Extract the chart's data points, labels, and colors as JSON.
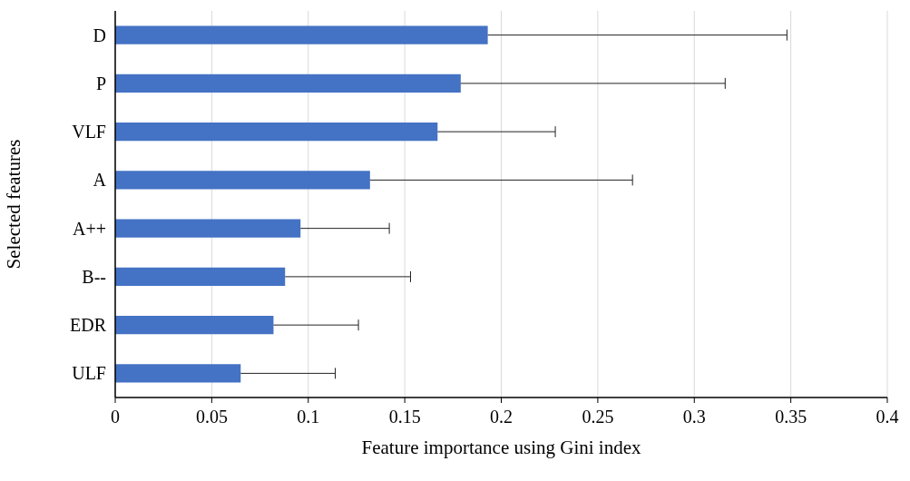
{
  "chart_data": {
    "type": "bar",
    "orientation": "horizontal",
    "xlabel": "Feature importance using Gini index",
    "ylabel": "Selected features",
    "categories": [
      "D",
      "P",
      "VLF",
      "A",
      "A++",
      "B--",
      "EDR",
      "ULF"
    ],
    "values": [
      0.193,
      0.179,
      0.167,
      0.132,
      0.096,
      0.088,
      0.082,
      0.065
    ],
    "errors": [
      [
        0.193,
        0.348
      ],
      [
        0.179,
        0.316
      ],
      [
        0.167,
        0.228
      ],
      [
        0.132,
        0.268
      ],
      [
        0.096,
        0.142
      ],
      [
        0.088,
        0.153
      ],
      [
        0.082,
        0.126
      ],
      [
        0.065,
        0.114
      ]
    ],
    "color": "#4472c4",
    "xlim": [
      0,
      0.4
    ],
    "xticks": [
      0,
      0.05,
      0.1,
      0.15,
      0.2,
      0.25,
      0.3,
      0.35,
      0.4
    ],
    "grid": "x"
  }
}
